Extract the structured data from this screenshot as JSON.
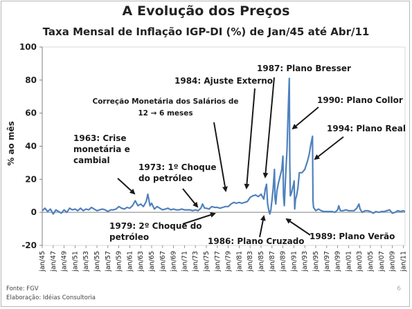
{
  "slide": {
    "title": "A Evolução dos Preços",
    "subtitle": "Taxa Mensal de Inflação IGP-DI (%) de Jan/45 até Abr/11",
    "source": "Fonte: FGV",
    "credit": "Elaboração: Idéias Consultoria",
    "page_number": "6"
  },
  "chart_data": {
    "type": "line",
    "title": "Taxa Mensal de Inflação IGP-DI (%) de Jan/45 até Abr/11",
    "ylabel": "% ao mês",
    "xlabel": "",
    "ylim": [
      -20,
      100
    ],
    "yticks": [
      -20,
      0,
      20,
      40,
      60,
      80,
      100
    ],
    "grid": false,
    "legend": "none",
    "line_color": "#4f81bd",
    "x_tick_labels": [
      "jan/45",
      "jan/47",
      "jan/49",
      "jan/51",
      "jan/53",
      "jan/55",
      "jan/57",
      "jan/59",
      "jan/61",
      "jan/63",
      "jan/65",
      "jan/67",
      "jan/69",
      "jan/71",
      "jan/73",
      "jan/75",
      "jan/77",
      "jan/79",
      "jan/81",
      "jan/83",
      "jan/85",
      "jan/87",
      "jan/89",
      "jan/91",
      "jan/93",
      "jan/95",
      "jan/97",
      "jan/99",
      "jan/01",
      "jan/03",
      "jan/05",
      "jan/07",
      "jan/09",
      "jan/11"
    ],
    "series": [
      {
        "values": [
          [
            1945.0,
            1.0
          ],
          [
            1945.5,
            2.5
          ],
          [
            1946.0,
            0.5
          ],
          [
            1946.5,
            2.0
          ],
          [
            1947.0,
            -1.0
          ],
          [
            1947.5,
            1.5
          ],
          [
            1948.0,
            0.5
          ],
          [
            1948.5,
            -0.5
          ],
          [
            1949.0,
            1.5
          ],
          [
            1949.5,
            0.0
          ],
          [
            1950.0,
            2.5
          ],
          [
            1950.5,
            1.5
          ],
          [
            1951.0,
            2.0
          ],
          [
            1951.5,
            1.0
          ],
          [
            1952.0,
            2.5
          ],
          [
            1952.5,
            1.0
          ],
          [
            1953.0,
            2.0
          ],
          [
            1953.5,
            1.5
          ],
          [
            1954.0,
            3.0
          ],
          [
            1954.5,
            2.0
          ],
          [
            1955.0,
            1.0
          ],
          [
            1955.5,
            1.5
          ],
          [
            1956.0,
            2.0
          ],
          [
            1956.5,
            1.5
          ],
          [
            1957.0,
            0.5
          ],
          [
            1957.5,
            1.5
          ],
          [
            1958.0,
            1.5
          ],
          [
            1958.5,
            2.0
          ],
          [
            1959.0,
            3.5
          ],
          [
            1959.5,
            2.5
          ],
          [
            1960.0,
            2.0
          ],
          [
            1960.5,
            3.0
          ],
          [
            1961.0,
            2.5
          ],
          [
            1961.5,
            4.0
          ],
          [
            1962.0,
            7.0
          ],
          [
            1962.5,
            4.0
          ],
          [
            1963.0,
            5.0
          ],
          [
            1963.5,
            3.5
          ],
          [
            1964.0,
            6.5
          ],
          [
            1964.3,
            11.0
          ],
          [
            1964.7,
            4.0
          ],
          [
            1965.0,
            5.5
          ],
          [
            1965.5,
            2.0
          ],
          [
            1966.0,
            3.5
          ],
          [
            1966.5,
            2.5
          ],
          [
            1967.0,
            1.5
          ],
          [
            1967.5,
            2.0
          ],
          [
            1968.0,
            2.5
          ],
          [
            1968.5,
            1.5
          ],
          [
            1969.0,
            2.0
          ],
          [
            1969.5,
            1.5
          ],
          [
            1970.0,
            1.5
          ],
          [
            1970.5,
            2.0
          ],
          [
            1971.0,
            1.5
          ],
          [
            1971.5,
            1.5
          ],
          [
            1972.0,
            1.5
          ],
          [
            1972.5,
            1.0
          ],
          [
            1973.0,
            1.5
          ],
          [
            1973.5,
            1.0
          ],
          [
            1974.0,
            2.5
          ],
          [
            1974.3,
            5.0
          ],
          [
            1974.7,
            2.5
          ],
          [
            1975.0,
            2.5
          ],
          [
            1975.5,
            2.0
          ],
          [
            1976.0,
            3.5
          ],
          [
            1976.5,
            3.0
          ],
          [
            1977.0,
            3.0
          ],
          [
            1977.5,
            2.5
          ],
          [
            1978.0,
            3.0
          ],
          [
            1978.5,
            3.5
          ],
          [
            1979.0,
            3.5
          ],
          [
            1979.5,
            5.0
          ],
          [
            1980.0,
            6.0
          ],
          [
            1980.5,
            5.5
          ],
          [
            1981.0,
            6.0
          ],
          [
            1981.5,
            5.5
          ],
          [
            1982.0,
            6.0
          ],
          [
            1982.5,
            6.5
          ],
          [
            1983.0,
            9.0
          ],
          [
            1983.5,
            10.0
          ],
          [
            1984.0,
            10.5
          ],
          [
            1984.5,
            9.5
          ],
          [
            1985.0,
            11.0
          ],
          [
            1985.5,
            8.0
          ],
          [
            1985.8,
            14.5
          ],
          [
            1986.0,
            17.0
          ],
          [
            1986.2,
            5.0
          ],
          [
            1986.4,
            1.5
          ],
          [
            1986.6,
            -1.0
          ],
          [
            1986.8,
            1.5
          ],
          [
            1986.95,
            6.0
          ],
          [
            1987.2,
            14.0
          ],
          [
            1987.45,
            26.0
          ],
          [
            1987.55,
            9.0
          ],
          [
            1987.7,
            5.0
          ],
          [
            1987.9,
            13.0
          ],
          [
            1988.2,
            18.0
          ],
          [
            1988.5,
            22.0
          ],
          [
            1988.8,
            26.0
          ],
          [
            1989.0,
            34.0
          ],
          [
            1989.1,
            10.0
          ],
          [
            1989.25,
            4.0
          ],
          [
            1989.5,
            22.0
          ],
          [
            1989.75,
            38.0
          ],
          [
            1989.9,
            55.0
          ],
          [
            1990.05,
            70.0
          ],
          [
            1990.17,
            81.0
          ],
          [
            1990.25,
            30.0
          ],
          [
            1990.35,
            10.0
          ],
          [
            1990.6,
            12.0
          ],
          [
            1990.8,
            15.0
          ],
          [
            1990.95,
            17.0
          ],
          [
            1991.05,
            19.0
          ],
          [
            1991.15,
            2.0
          ],
          [
            1991.3,
            8.0
          ],
          [
            1991.5,
            10.0
          ],
          [
            1991.75,
            15.0
          ],
          [
            1992.0,
            24.0
          ],
          [
            1992.5,
            24.0
          ],
          [
            1993.0,
            26.0
          ],
          [
            1993.5,
            31.0
          ],
          [
            1993.8,
            35.0
          ],
          [
            1994.1,
            41.0
          ],
          [
            1994.4,
            46.0
          ],
          [
            1994.5,
            7.0
          ],
          [
            1994.6,
            3.0
          ],
          [
            1994.8,
            2.0
          ],
          [
            1995.0,
            1.0
          ],
          [
            1995.5,
            2.0
          ],
          [
            1996.0,
            1.0
          ],
          [
            1996.5,
            0.5
          ],
          [
            1997.0,
            0.5
          ],
          [
            1997.5,
            0.5
          ],
          [
            1998.0,
            0.5
          ],
          [
            1998.5,
            0.0
          ],
          [
            1999.0,
            1.5
          ],
          [
            1999.2,
            4.0
          ],
          [
            1999.5,
            1.0
          ],
          [
            2000.0,
            1.0
          ],
          [
            2000.5,
            1.5
          ],
          [
            2001.0,
            1.0
          ],
          [
            2001.5,
            1.0
          ],
          [
            2002.0,
            1.0
          ],
          [
            2002.5,
            2.5
          ],
          [
            2002.9,
            5.0
          ],
          [
            2003.1,
            2.0
          ],
          [
            2003.5,
            0.0
          ],
          [
            2004.0,
            1.0
          ],
          [
            2004.5,
            1.0
          ],
          [
            2005.0,
            0.5
          ],
          [
            2005.5,
            -0.5
          ],
          [
            2006.0,
            0.5
          ],
          [
            2006.5,
            0.0
          ],
          [
            2007.0,
            0.5
          ],
          [
            2007.5,
            0.5
          ],
          [
            2008.0,
            1.0
          ],
          [
            2008.5,
            1.5
          ],
          [
            2009.0,
            -0.5
          ],
          [
            2009.5,
            0.0
          ],
          [
            2010.0,
            1.0
          ],
          [
            2010.5,
            0.5
          ],
          [
            2011.0,
            1.0
          ],
          [
            2011.3,
            0.5
          ]
        ]
      }
    ],
    "annotations": [
      {
        "id": "crise-1963",
        "text": [
          "1963: Crise",
          "monetária e",
          "cambial"
        ]
      },
      {
        "id": "petroleo-1973",
        "text": [
          "1973: 1º Choque",
          "do petróleo"
        ]
      },
      {
        "id": "salarios",
        "text": [
          "Correção Monetária dos Salários de",
          "12 → 6  meses"
        ]
      },
      {
        "id": "ajuste-1984",
        "text": [
          "1984: Ajuste Externo"
        ]
      },
      {
        "id": "bresser-1987",
        "text": [
          "1987: Plano Bresser"
        ]
      },
      {
        "id": "collor-1990",
        "text": [
          "1990: Plano Collor"
        ]
      },
      {
        "id": "real-1994",
        "text": [
          "1994: Plano Real"
        ]
      },
      {
        "id": "petroleo-1979",
        "text": [
          "1979: 2º Choque do",
          "petróleo"
        ]
      },
      {
        "id": "cruzado-1986",
        "text": [
          "1986: Plano Cruzado"
        ]
      },
      {
        "id": "verao-1989",
        "text": [
          "1989: Plano Verão"
        ]
      }
    ]
  }
}
